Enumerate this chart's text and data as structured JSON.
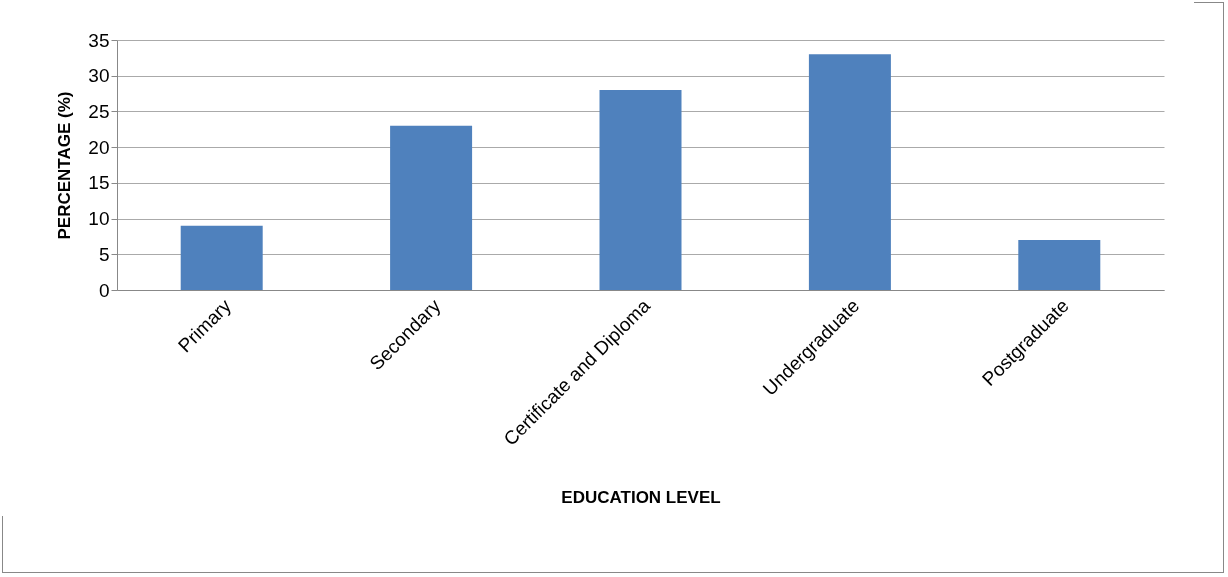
{
  "chart_data": {
    "type": "bar",
    "xlabel": "EDUCATION LEVEL",
    "ylabel": "PERCENTAGE (%)",
    "categories": [
      "Primary",
      "Secondary",
      "Certificate and Diploma",
      "Undergraduate",
      "Postgraduate"
    ],
    "values": [
      9,
      23,
      28,
      33,
      7
    ],
    "color": "#4f81bd",
    "ylim": [
      0,
      35
    ],
    "yticks": [
      0,
      5,
      10,
      15,
      20,
      25,
      30,
      35
    ],
    "grid": "y"
  }
}
